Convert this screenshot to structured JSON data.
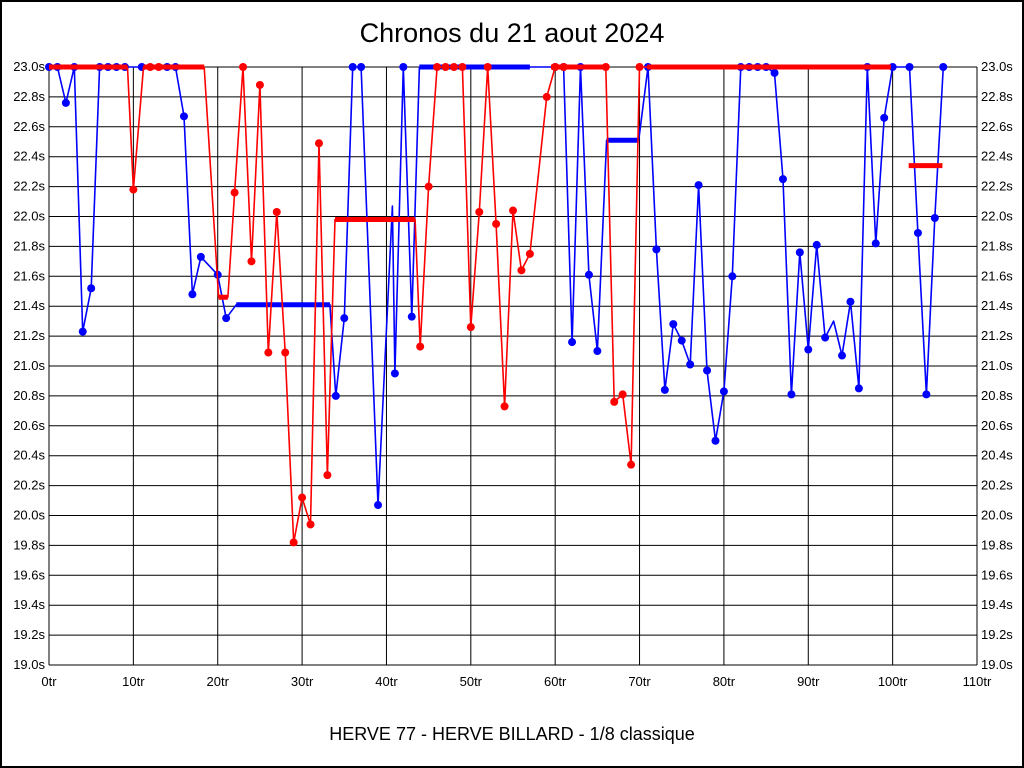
{
  "chart_data": {
    "type": "line",
    "title": "Chronos du 21 aout 2024",
    "caption": "HERVE 77 - HERVE BILLARD - 1/8 classique",
    "x_axis": {
      "label_unit": "tr (tours / laps)",
      "min": 0,
      "max": 110,
      "tick_step": 10,
      "tick_labels": [
        "0tr",
        "10tr",
        "20tr",
        "30tr",
        "40tr",
        "50tr",
        "60tr",
        "70tr",
        "80tr",
        "90tr",
        "100tr",
        "110tr"
      ]
    },
    "y_axis": {
      "label_unit": "s (secondes, temps au tour)",
      "min": 19.0,
      "max": 23.0,
      "tick_step": 0.2,
      "labels_both_sides": true,
      "tick_labels": [
        "23.0s",
        "22.8s",
        "22.6s",
        "22.4s",
        "22.2s",
        "22.0s",
        "21.8s",
        "21.6s",
        "21.4s",
        "21.2s",
        "21.0s",
        "20.8s",
        "20.6s",
        "20.4s",
        "20.2s",
        "20.0s",
        "19.8s",
        "19.6s",
        "19.4s",
        "19.2s",
        "19.0s"
      ]
    },
    "grid": true,
    "legend": "none",
    "series": [
      {
        "name": "serie-bleue",
        "color": "#0000ff",
        "marker": "circle",
        "points": [
          [
            0,
            23,
            1
          ],
          [
            1,
            23,
            1
          ],
          [
            2,
            22.76,
            1
          ],
          [
            3,
            23,
            1
          ],
          [
            4,
            21.23,
            1
          ],
          [
            5,
            21.52,
            1
          ],
          [
            6,
            23,
            1
          ],
          [
            7,
            23,
            1
          ],
          [
            8,
            23,
            1
          ],
          [
            9,
            23,
            1
          ],
          [
            10,
            23,
            0
          ],
          [
            11,
            23,
            1
          ],
          [
            12,
            23,
            0
          ],
          [
            13,
            23,
            0
          ],
          [
            14,
            23,
            1
          ],
          [
            15,
            23,
            1
          ],
          [
            16,
            22.67,
            1
          ],
          [
            17,
            21.48,
            1
          ],
          [
            18,
            21.73,
            1
          ],
          [
            19,
            21.67,
            0
          ],
          [
            20,
            21.61,
            1
          ],
          [
            21,
            21.32,
            1
          ],
          [
            22.2,
            21.41,
            0
          ],
          [
            33.3,
            21.41,
            0
          ],
          [
            34,
            20.8,
            1
          ],
          [
            35,
            21.32,
            1
          ],
          [
            36,
            23,
            1
          ],
          [
            37,
            23,
            1
          ],
          [
            39,
            20.07,
            1
          ],
          [
            40.7,
            22.07,
            0
          ],
          [
            41,
            20.95,
            1
          ],
          [
            42,
            23,
            1
          ],
          [
            43,
            21.33,
            1
          ],
          [
            43.9,
            23,
            0
          ],
          [
            57,
            23,
            0
          ],
          [
            60,
            23,
            1
          ],
          [
            61,
            23,
            1
          ],
          [
            62,
            21.16,
            1
          ],
          [
            63,
            23,
            1
          ],
          [
            64,
            21.61,
            1
          ],
          [
            65,
            21.1,
            1
          ],
          [
            66.1,
            22.51,
            0
          ],
          [
            69.9,
            22.51,
            0
          ],
          [
            71,
            23,
            1
          ],
          [
            72,
            21.78,
            1
          ],
          [
            73,
            20.84,
            1
          ],
          [
            74,
            21.28,
            1
          ],
          [
            75,
            21.17,
            1
          ],
          [
            76,
            21.01,
            1
          ],
          [
            77,
            22.21,
            1
          ],
          [
            78,
            20.97,
            1
          ],
          [
            79,
            20.5,
            1
          ],
          [
            80,
            20.83,
            1
          ],
          [
            81,
            21.6,
            1
          ],
          [
            82,
            23,
            1
          ],
          [
            83,
            23,
            1
          ],
          [
            84,
            23,
            1
          ],
          [
            85,
            23,
            1
          ],
          [
            86,
            22.96,
            1
          ],
          [
            87,
            22.25,
            1
          ],
          [
            88,
            20.81,
            1
          ],
          [
            89,
            21.76,
            1
          ],
          [
            90,
            21.11,
            1
          ],
          [
            91,
            21.81,
            1
          ],
          [
            92,
            21.19,
            1
          ],
          [
            93,
            21.3,
            0
          ],
          [
            94,
            21.07,
            1
          ],
          [
            95,
            21.43,
            1
          ],
          [
            96,
            20.85,
            1
          ],
          [
            97,
            23,
            1
          ],
          [
            98,
            21.82,
            1
          ],
          [
            99,
            22.66,
            1
          ],
          [
            100,
            23,
            1
          ],
          [
            102,
            23,
            1
          ],
          [
            103,
            21.89,
            1
          ],
          [
            104,
            20.81,
            1
          ],
          [
            105,
            21.99,
            1
          ],
          [
            106,
            23,
            1
          ]
        ],
        "flat_segments": [
          [
            22.2,
            33.3,
            21.41
          ],
          [
            43.9,
            57.0,
            23.0
          ],
          [
            66.1,
            69.9,
            22.51
          ]
        ]
      },
      {
        "name": "serie-rouge",
        "color": "#ff0000",
        "marker": "circle",
        "points": [
          [
            0,
            23,
            0
          ],
          [
            9.3,
            23,
            0
          ],
          [
            10,
            22.18,
            1
          ],
          [
            11.2,
            23,
            0
          ],
          [
            12,
            23,
            1
          ],
          [
            13,
            23,
            1
          ],
          [
            18.4,
            23,
            0
          ],
          [
            20.1,
            21.46,
            0
          ],
          [
            21.2,
            21.46,
            0
          ],
          [
            22,
            22.16,
            1
          ],
          [
            23,
            23,
            1
          ],
          [
            24,
            21.7,
            1
          ],
          [
            25,
            22.88,
            1
          ],
          [
            26,
            21.09,
            1
          ],
          [
            27,
            22.03,
            1
          ],
          [
            28,
            21.09,
            1
          ],
          [
            29,
            19.82,
            1
          ],
          [
            30,
            20.12,
            1
          ],
          [
            31,
            19.94,
            1
          ],
          [
            32,
            22.49,
            1
          ],
          [
            33,
            20.27,
            1
          ],
          [
            33.9,
            21.98,
            0
          ],
          [
            43.4,
            21.98,
            0
          ],
          [
            44,
            21.13,
            1
          ],
          [
            45,
            22.2,
            1
          ],
          [
            46,
            23,
            1
          ],
          [
            47,
            23,
            1
          ],
          [
            48,
            23,
            1
          ],
          [
            49,
            23,
            1
          ],
          [
            50,
            21.26,
            1
          ],
          [
            51,
            22.03,
            1
          ],
          [
            52,
            23,
            1
          ],
          [
            53,
            21.95,
            1
          ],
          [
            54,
            20.73,
            1
          ],
          [
            55,
            22.04,
            1
          ],
          [
            56,
            21.64,
            1
          ],
          [
            57,
            21.75,
            1
          ],
          [
            59,
            22.8,
            1
          ],
          [
            60,
            23,
            1
          ],
          [
            61,
            23,
            1
          ],
          [
            66,
            23,
            1
          ],
          [
            67,
            20.76,
            1
          ],
          [
            68,
            20.81,
            1
          ],
          [
            69,
            20.34,
            1
          ],
          [
            70,
            23,
            1
          ],
          [
            99.8,
            23,
            0
          ]
        ],
        "flat_segments": [
          [
            0,
            9.3,
            23.0
          ],
          [
            11.2,
            18.4,
            23.0
          ],
          [
            20.1,
            21.2,
            21.46
          ],
          [
            33.9,
            43.4,
            21.98
          ],
          [
            59.5,
            66.0,
            23.0
          ],
          [
            70.9,
            99.8,
            23.0
          ],
          [
            101.9,
            105.9,
            22.34
          ]
        ]
      }
    ]
  }
}
